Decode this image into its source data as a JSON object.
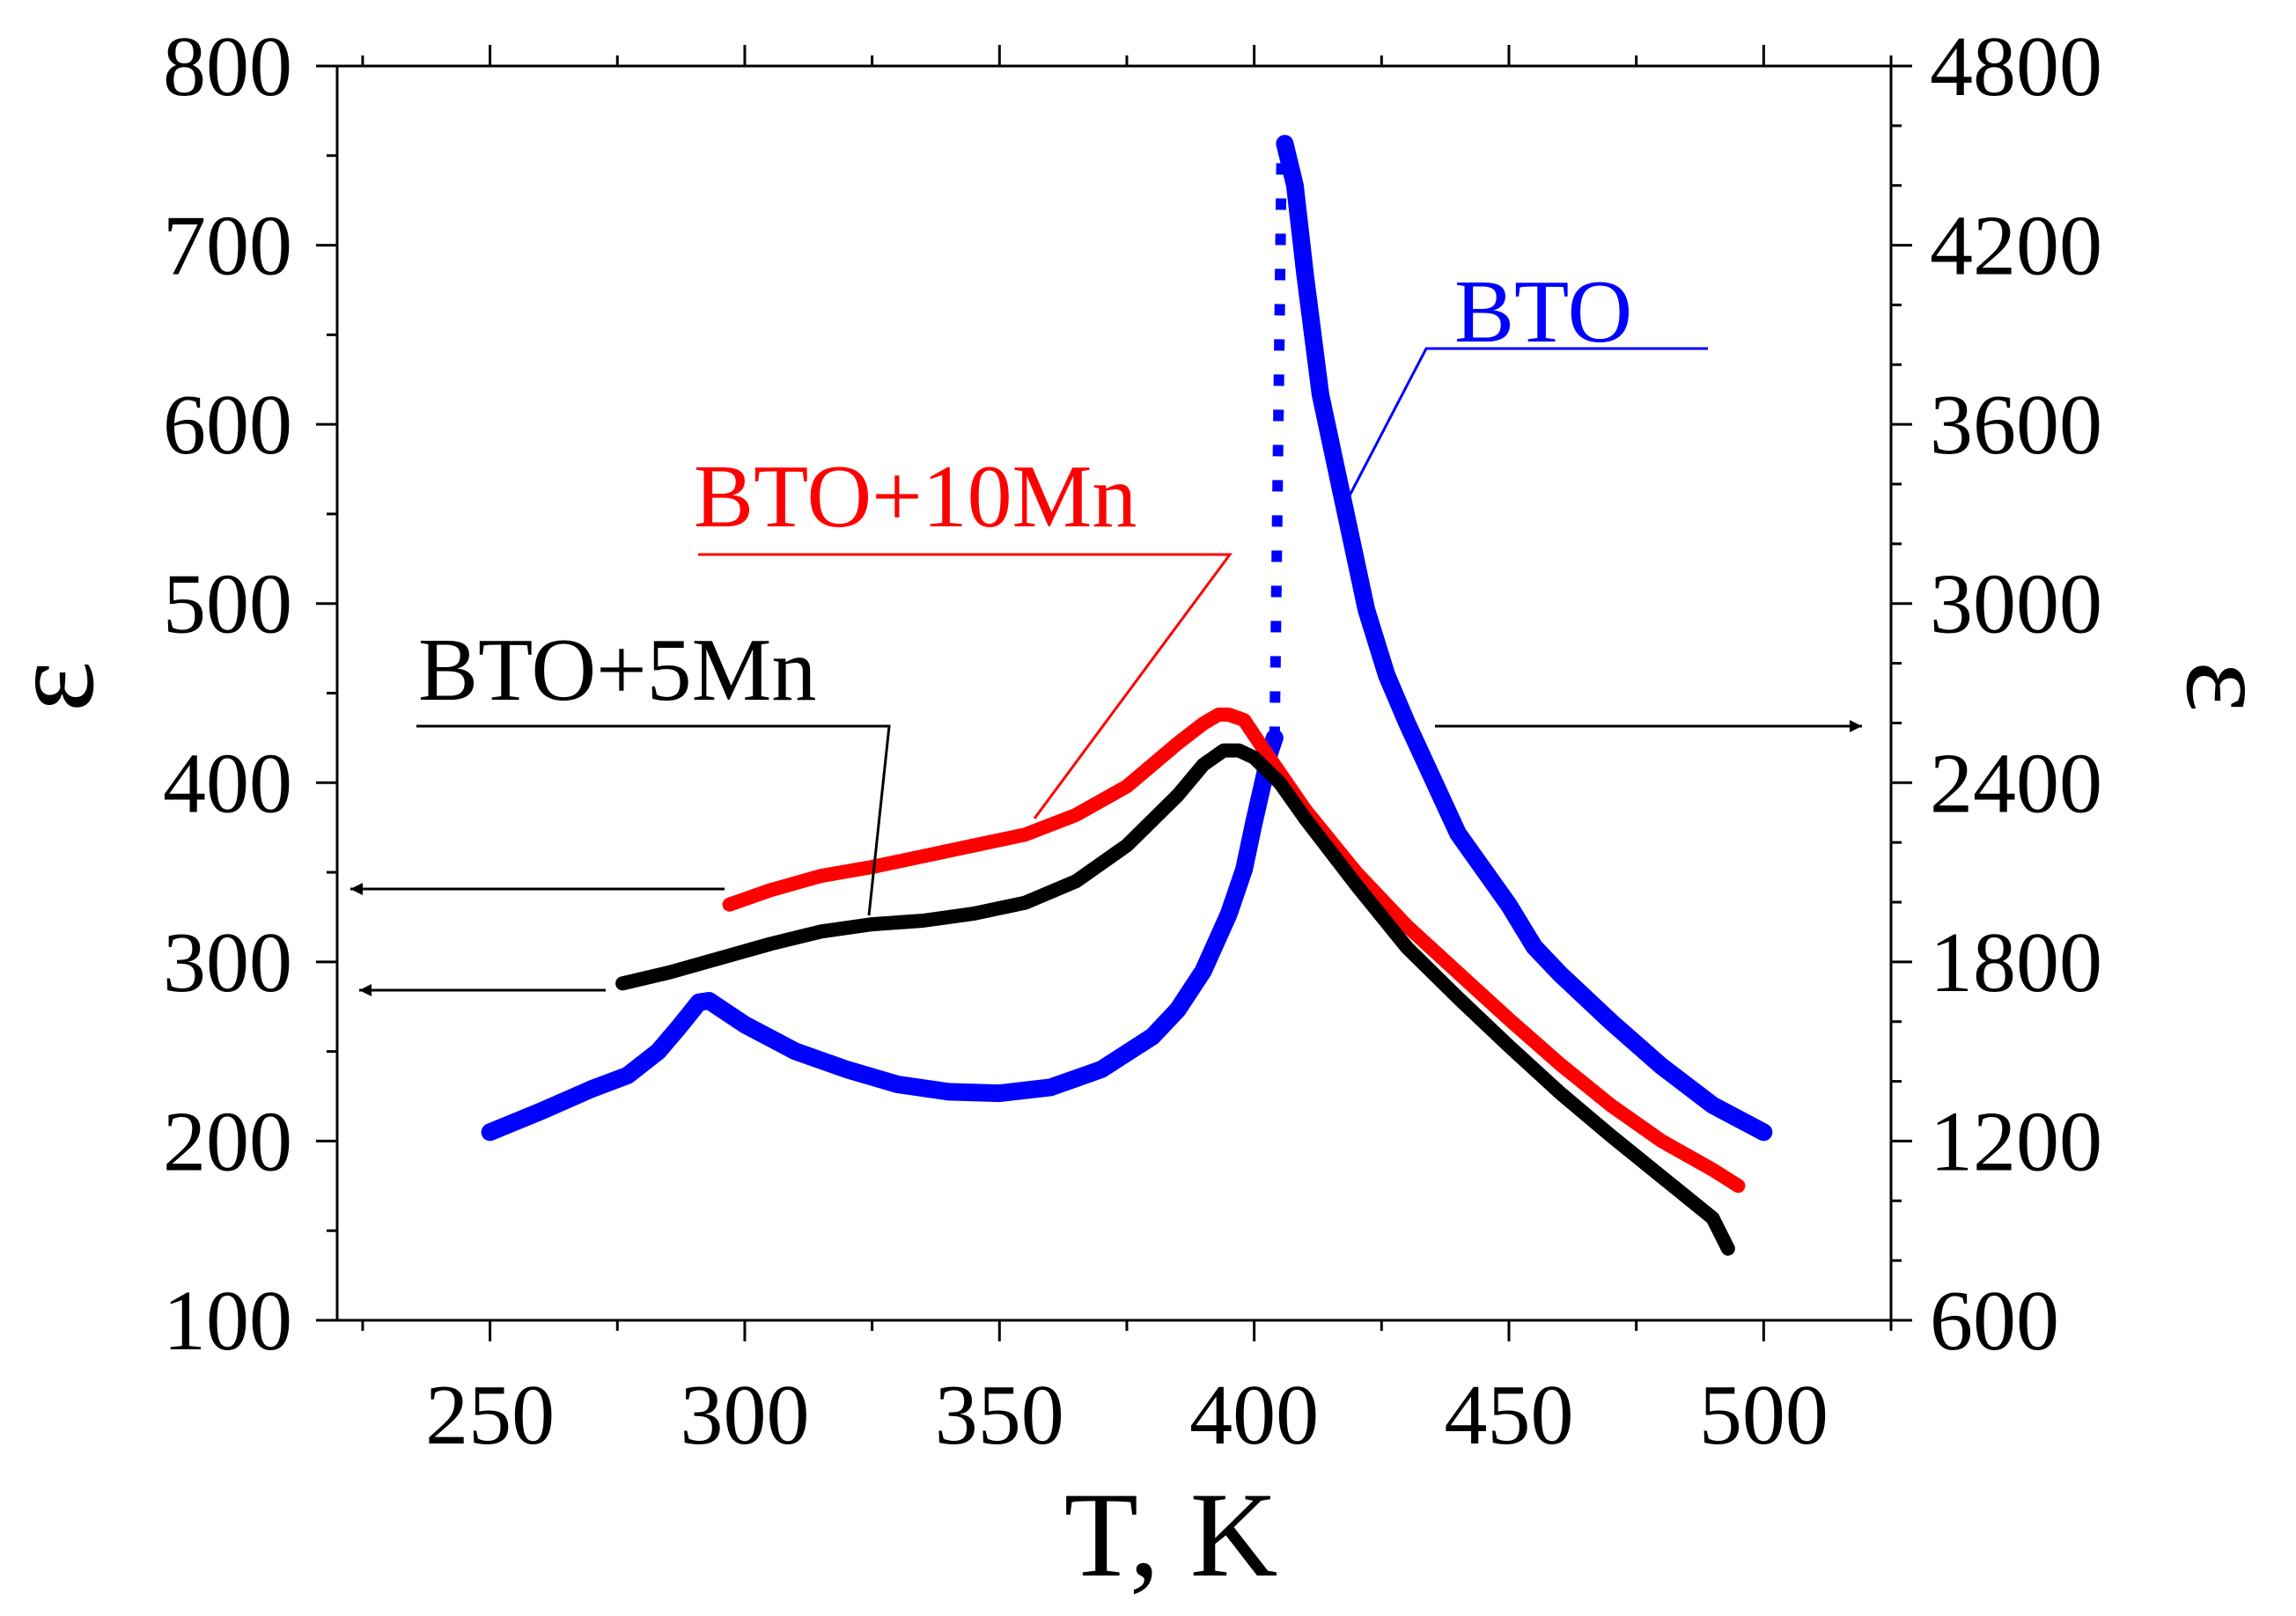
{
  "chart_data": {
    "type": "line",
    "xlabel": "T, K",
    "ylabel_left": "ε",
    "ylabel_right": "ε",
    "xlim": [
      220,
      525
    ],
    "ylim_left": [
      100,
      800
    ],
    "ylim_right": [
      600,
      4800
    ],
    "x_ticks": [
      250,
      300,
      350,
      400,
      450,
      500
    ],
    "y_ticks_left": [
      100,
      200,
      300,
      400,
      500,
      600,
      700,
      800
    ],
    "y_ticks_right": [
      600,
      1200,
      1800,
      2400,
      3000,
      3600,
      4200,
      4800
    ],
    "grid": false,
    "colors": {
      "bto": "#0000ff",
      "bto_10mn": "#ff0000",
      "bto_5mn": "#000000"
    },
    "series": [
      {
        "name": "BTO",
        "axis": "right",
        "x": [
          250,
          260,
          270,
          277,
          283,
          287,
          291,
          293,
          300,
          310,
          320,
          330,
          340,
          350,
          360,
          370,
          380,
          385,
          390,
          395,
          398,
          400,
          402,
          403,
          404
        ],
        "y": [
          1230,
          1300,
          1375,
          1420,
          1500,
          1580,
          1665,
          1670,
          1590,
          1500,
          1440,
          1390,
          1365,
          1360,
          1380,
          1440,
          1550,
          1640,
          1770,
          1960,
          2110,
          2270,
          2420,
          2500,
          2550
        ]
      },
      {
        "name": "BTO",
        "axis": "right",
        "x": [
          406,
          408,
          410,
          413,
          418,
          422,
          426,
          430,
          440,
          450,
          455,
          460,
          470,
          480,
          490,
          500
        ],
        "y": [
          4540,
          4400,
          4100,
          3700,
          3300,
          2980,
          2760,
          2600,
          2230,
          1990,
          1850,
          1760,
          1600,
          1450,
          1320,
          1230
        ]
      },
      {
        "name": "BTO+10Mn",
        "axis": "left",
        "x": [
          297,
          305,
          315,
          325,
          335,
          345,
          355,
          365,
          375,
          385,
          390,
          393,
          395,
          398,
          402,
          410,
          420,
          430,
          440,
          450,
          460,
          470,
          480,
          490,
          495
        ],
        "y": [
          332,
          340,
          348,
          353,
          359,
          365,
          371,
          382,
          398,
          422,
          433,
          438,
          438,
          435,
          418,
          385,
          350,
          320,
          294,
          268,
          243,
          220,
          200,
          184,
          175
        ]
      },
      {
        "name": "BTO+5Mn",
        "axis": "left",
        "x": [
          276,
          285,
          295,
          305,
          315,
          325,
          335,
          345,
          355,
          365,
          375,
          385,
          390,
          394,
          397,
          400,
          405,
          410,
          420,
          430,
          440,
          450,
          460,
          470,
          480,
          490,
          493
        ],
        "y": [
          288,
          294,
          302,
          310,
          317,
          321,
          323,
          327,
          333,
          345,
          365,
          393,
          410,
          418,
          418,
          414,
          400,
          380,
          343,
          308,
          280,
          253,
          227,
          203,
          180,
          157,
          140
        ]
      }
    ],
    "annotations": {
      "bto_label": "BTO",
      "bto_10mn_label": "BTO+10Mn",
      "bto_5mn_label": "BTO+5Mn"
    }
  }
}
